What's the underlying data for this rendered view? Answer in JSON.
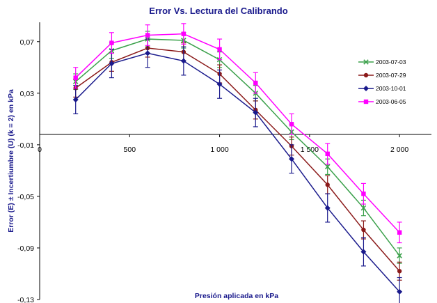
{
  "chart_data": {
    "type": "line",
    "title": "Error Vs. Lectura del Calibrando",
    "xlabel": "Presión aplicada en  kPa",
    "ylabel": "Error (E) ± Incertiumbre (U)  (k = 2) en kPa",
    "xlim": [
      0,
      2100
    ],
    "ylim": [
      -0.13,
      0.085
    ],
    "x_ticks": [
      0,
      500,
      1000,
      1500,
      2000
    ],
    "x_tick_labels": [
      "0",
      "500",
      "1 000",
      "1 500",
      "2 000"
    ],
    "y_ticks": [
      0.07,
      0.03,
      -0.01,
      -0.05,
      -0.09,
      -0.13
    ],
    "y_tick_labels": [
      "0,07",
      "0,03",
      "-0,01",
      "-0,05",
      "-0,09",
      "-0,13"
    ],
    "grid": false,
    "legend_position": "right",
    "x": [
      200,
      400,
      600,
      800,
      1000,
      1200,
      1400,
      1600,
      1800,
      2000
    ],
    "series": [
      {
        "name": "2003-07-03",
        "color": "#3aa04a",
        "marker": "x-marker",
        "values": [
          0.039,
          0.063,
          0.072,
          0.071,
          0.056,
          0.03,
          0.0,
          -0.027,
          -0.059,
          -0.096
        ],
        "error": [
          0.006,
          0.006,
          0.006,
          0.006,
          0.006,
          0.006,
          0.006,
          0.006,
          0.006,
          0.006
        ]
      },
      {
        "name": "2003-07-29",
        "color": "#8b1a1a",
        "marker": "circle-marker",
        "values": [
          0.034,
          0.054,
          0.065,
          0.062,
          0.045,
          0.017,
          -0.011,
          -0.041,
          -0.076,
          -0.108
        ],
        "error": [
          0.007,
          0.007,
          0.007,
          0.007,
          0.007,
          0.007,
          0.007,
          0.007,
          0.007,
          0.007
        ]
      },
      {
        "name": "2003-10-01",
        "color": "#1a1a8c",
        "marker": "diamond-marker",
        "values": [
          0.025,
          0.053,
          0.061,
          0.055,
          0.037,
          0.015,
          -0.021,
          -0.059,
          -0.093,
          -0.124
        ],
        "error": [
          0.011,
          0.011,
          0.011,
          0.011,
          0.011,
          0.011,
          0.011,
          0.011,
          0.011,
          0.011
        ]
      },
      {
        "name": "2003-06-05",
        "color": "#ff00ff",
        "marker": "square-marker",
        "values": [
          0.042,
          0.069,
          0.075,
          0.076,
          0.064,
          0.038,
          0.006,
          -0.017,
          -0.048,
          -0.078
        ],
        "error": [
          0.008,
          0.008,
          0.008,
          0.008,
          0.008,
          0.008,
          0.008,
          0.008,
          0.008,
          0.008
        ]
      }
    ]
  }
}
